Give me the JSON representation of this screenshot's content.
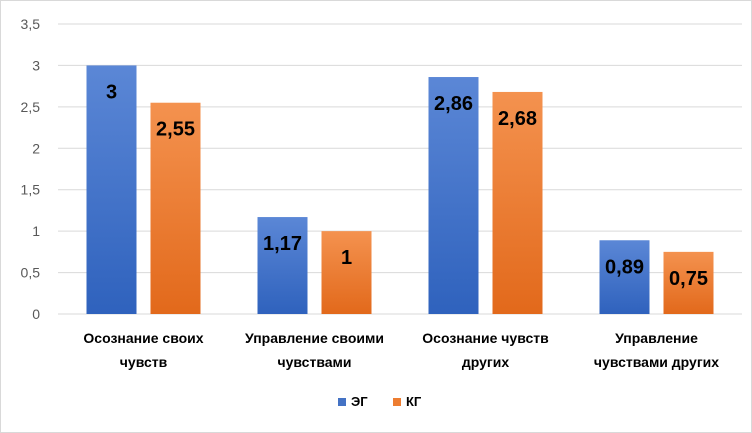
{
  "chart_data": {
    "type": "bar",
    "title": "",
    "xlabel": "",
    "ylabel": "",
    "ylim": [
      0,
      3.5
    ],
    "yticks": [
      "0",
      "0,5",
      "1",
      "1,5",
      "2",
      "2,5",
      "3",
      "3,5"
    ],
    "ytick_values": [
      0,
      0.5,
      1,
      1.5,
      2,
      2.5,
      3,
      3.5
    ],
    "grid": true,
    "legend_position": "bottom",
    "categories": [
      [
        "Осознание своих",
        "чувств"
      ],
      [
        "Управление своими",
        "чувствами"
      ],
      [
        "Осознание чувств",
        "других"
      ],
      [
        "Управление",
        "чувствами других"
      ]
    ],
    "series": [
      {
        "name": "ЭГ",
        "color": "#4472c4",
        "values": [
          3,
          1.17,
          2.86,
          0.89
        ],
        "labels": [
          "3",
          "1,17",
          "2,86",
          "0,89"
        ]
      },
      {
        "name": "КГ",
        "color": "#ed7d31",
        "values": [
          2.55,
          1,
          2.68,
          0.75
        ],
        "labels": [
          "2,55",
          "1",
          "2,68",
          "0,75"
        ]
      }
    ]
  }
}
